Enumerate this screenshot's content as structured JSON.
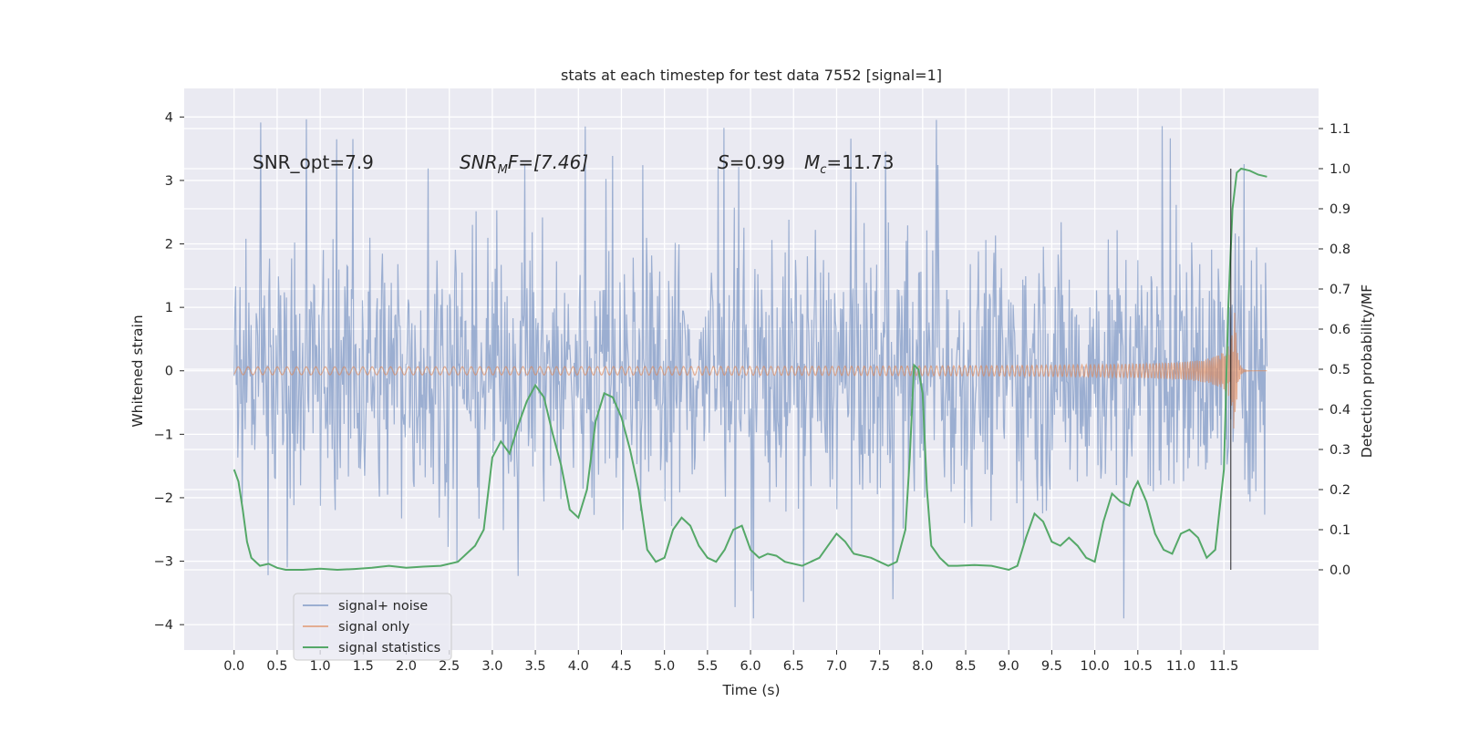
{
  "chart_data": {
    "type": "line",
    "title": "stats at each timestep for test data 7552 [signal=1]",
    "xlabel": "Time (s)",
    "ylabel": "Whitened strain",
    "ylabel_right": "Detection probability/MF",
    "xlim": [
      -0.58,
      12.6
    ],
    "ylim": [
      -4.4,
      4.45
    ],
    "ylim_right": [
      -0.2,
      1.2
    ],
    "x_ticks": [
      "0.0",
      "0.5",
      "1.0",
      "1.5",
      "2.0",
      "2.5",
      "3.0",
      "3.5",
      "4.0",
      "4.5",
      "5.0",
      "5.5",
      "6.0",
      "6.5",
      "7.0",
      "7.5",
      "8.0",
      "8.5",
      "9.0",
      "9.5",
      "10.0",
      "10.5",
      "11.0",
      "11.5"
    ],
    "y_ticks": [
      "4",
      "3",
      "2",
      "1",
      "0",
      "−1",
      "−2",
      "−3",
      "−4"
    ],
    "y_ticks_right": [
      "1.1",
      "1.0",
      "0.9",
      "0.8",
      "0.7",
      "0.6",
      "0.5",
      "0.4",
      "0.3",
      "0.2",
      "0.1",
      "0.0"
    ],
    "grid": true,
    "legend_position": "lower-left",
    "annotations": {
      "snr_opt": "SNR_opt=7.9",
      "snr_mf_sym": "SNR",
      "snr_mf_sub": "M",
      "snr_mf_rest": "F=[7.46]",
      "s_sym": "S",
      "s_val": "=0.99",
      "mc_sym": "M",
      "mc_sub": "c",
      "mc_val": "=11.73"
    },
    "colors": {
      "background": "#eaeaf2",
      "grid": "#ffffff",
      "noise": "#4c72b0",
      "signal": "#dd8452",
      "stat": "#55a868",
      "marker": "#000000"
    },
    "series": [
      {
        "name": "signal+ noise",
        "axis": "left",
        "noise_envelope": {
          "x_start": 0.0,
          "x_end": 12.0,
          "typical_amplitude": 1.4,
          "max_peak": 4.1,
          "min_peak": -3.9
        }
      },
      {
        "name": "signal only",
        "axis": "left",
        "chirp": {
          "x_start": 0.0,
          "x_merger": 11.62,
          "x_end": 12.0,
          "peak_amplitude": 1.3,
          "early_amplitude": 0.05
        }
      },
      {
        "name": "signal statistics",
        "axis": "right",
        "x": [
          0.0,
          0.05,
          0.1,
          0.15,
          0.2,
          0.3,
          0.4,
          0.5,
          0.6,
          0.8,
          1.0,
          1.2,
          1.4,
          1.6,
          1.8,
          2.0,
          2.2,
          2.4,
          2.6,
          2.7,
          2.8,
          2.9,
          3.0,
          3.1,
          3.2,
          3.3,
          3.4,
          3.5,
          3.6,
          3.7,
          3.8,
          3.9,
          4.0,
          4.1,
          4.2,
          4.3,
          4.4,
          4.5,
          4.6,
          4.7,
          4.8,
          4.9,
          5.0,
          5.1,
          5.2,
          5.3,
          5.4,
          5.5,
          5.6,
          5.7,
          5.8,
          5.9,
          6.0,
          6.1,
          6.2,
          6.3,
          6.4,
          6.6,
          6.8,
          6.9,
          7.0,
          7.1,
          7.2,
          7.4,
          7.6,
          7.7,
          7.8,
          7.85,
          7.9,
          7.95,
          8.0,
          8.05,
          8.1,
          8.2,
          8.3,
          8.4,
          8.6,
          8.8,
          9.0,
          9.1,
          9.2,
          9.3,
          9.4,
          9.5,
          9.6,
          9.7,
          9.8,
          9.9,
          10.0,
          10.1,
          10.2,
          10.3,
          10.4,
          10.45,
          10.5,
          10.6,
          10.7,
          10.8,
          10.9,
          11.0,
          11.1,
          11.2,
          11.3,
          11.4,
          11.5,
          11.55,
          11.6,
          11.65,
          11.7,
          11.8,
          11.9,
          12.0
        ],
        "values": [
          0.25,
          0.22,
          0.15,
          0.07,
          0.03,
          0.01,
          0.015,
          0.005,
          0.0,
          0.0,
          0.003,
          0.0,
          0.002,
          0.005,
          0.01,
          0.005,
          0.008,
          0.01,
          0.02,
          0.04,
          0.06,
          0.1,
          0.28,
          0.32,
          0.29,
          0.36,
          0.42,
          0.46,
          0.43,
          0.34,
          0.26,
          0.15,
          0.13,
          0.2,
          0.37,
          0.44,
          0.43,
          0.38,
          0.3,
          0.2,
          0.05,
          0.02,
          0.03,
          0.1,
          0.13,
          0.11,
          0.06,
          0.03,
          0.02,
          0.05,
          0.1,
          0.11,
          0.05,
          0.03,
          0.04,
          0.035,
          0.02,
          0.01,
          0.03,
          0.06,
          0.09,
          0.07,
          0.04,
          0.03,
          0.01,
          0.02,
          0.1,
          0.28,
          0.51,
          0.5,
          0.44,
          0.2,
          0.06,
          0.03,
          0.01,
          0.01,
          0.012,
          0.01,
          0.0,
          0.01,
          0.08,
          0.14,
          0.12,
          0.07,
          0.06,
          0.08,
          0.06,
          0.03,
          0.02,
          0.12,
          0.19,
          0.17,
          0.16,
          0.2,
          0.22,
          0.17,
          0.09,
          0.05,
          0.04,
          0.09,
          0.1,
          0.08,
          0.03,
          0.05,
          0.25,
          0.65,
          0.9,
          0.99,
          1.0,
          0.995,
          0.985,
          0.98
        ]
      }
    ],
    "merger_marker_x": 11.58
  }
}
